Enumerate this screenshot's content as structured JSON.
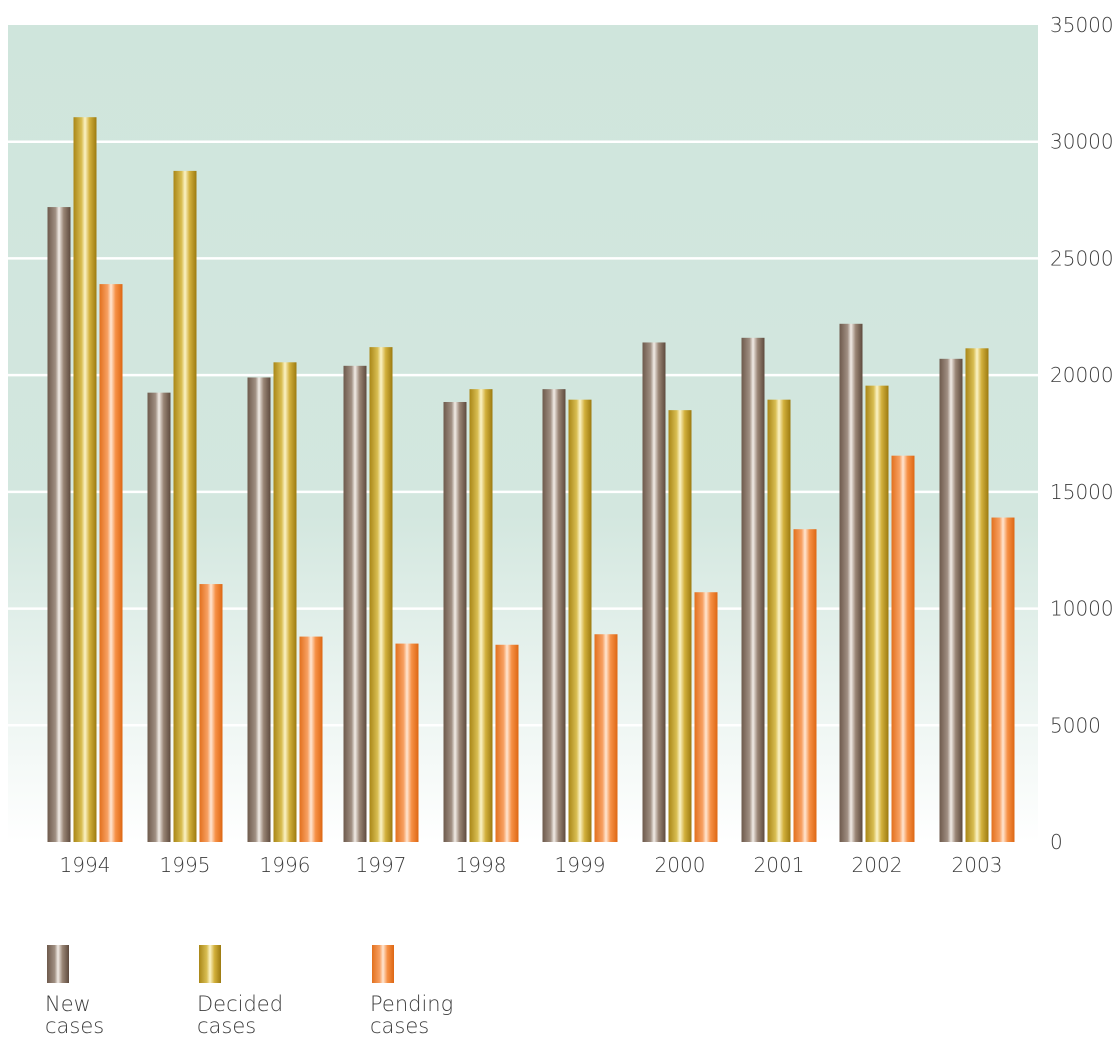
{
  "chart_data": {
    "type": "bar",
    "categories": [
      "1994",
      "1995",
      "1996",
      "1997",
      "1998",
      "1999",
      "2000",
      "2001",
      "2002",
      "2003"
    ],
    "series": [
      {
        "name": "New cases",
        "values": [
          27200,
          19250,
          19900,
          20400,
          18850,
          19400,
          21400,
          21600,
          22200,
          20700
        ]
      },
      {
        "name": "Decided cases",
        "values": [
          31050,
          28750,
          20550,
          21200,
          19400,
          18950,
          18500,
          18950,
          19550,
          21150
        ]
      },
      {
        "name": "Pending cases",
        "values": [
          23900,
          11050,
          8800,
          8500,
          8450,
          8900,
          10700,
          13400,
          16550,
          13900
        ]
      }
    ],
    "ylim": [
      0,
      35000
    ],
    "yticks": [
      0,
      5000,
      10000,
      15000,
      20000,
      25000,
      30000,
      35000
    ],
    "ytick_labels": [
      "0",
      "5000",
      "10000",
      "15000",
      "20000",
      "25000",
      "30000",
      "35000"
    ],
    "grid": true,
    "legend_position": "bottom-left"
  },
  "legend": {
    "items": [
      {
        "label": "New\ncases",
        "color": "#8c7565"
      },
      {
        "label": "Decided\ncases",
        "color": "#c9a52a"
      },
      {
        "label": "Pending\ncases",
        "color": "#f0893a"
      }
    ]
  },
  "colors": {
    "plot_top": "#cfe5dc",
    "plot_bottom": "#ffffff",
    "grid": "#ffffff"
  }
}
